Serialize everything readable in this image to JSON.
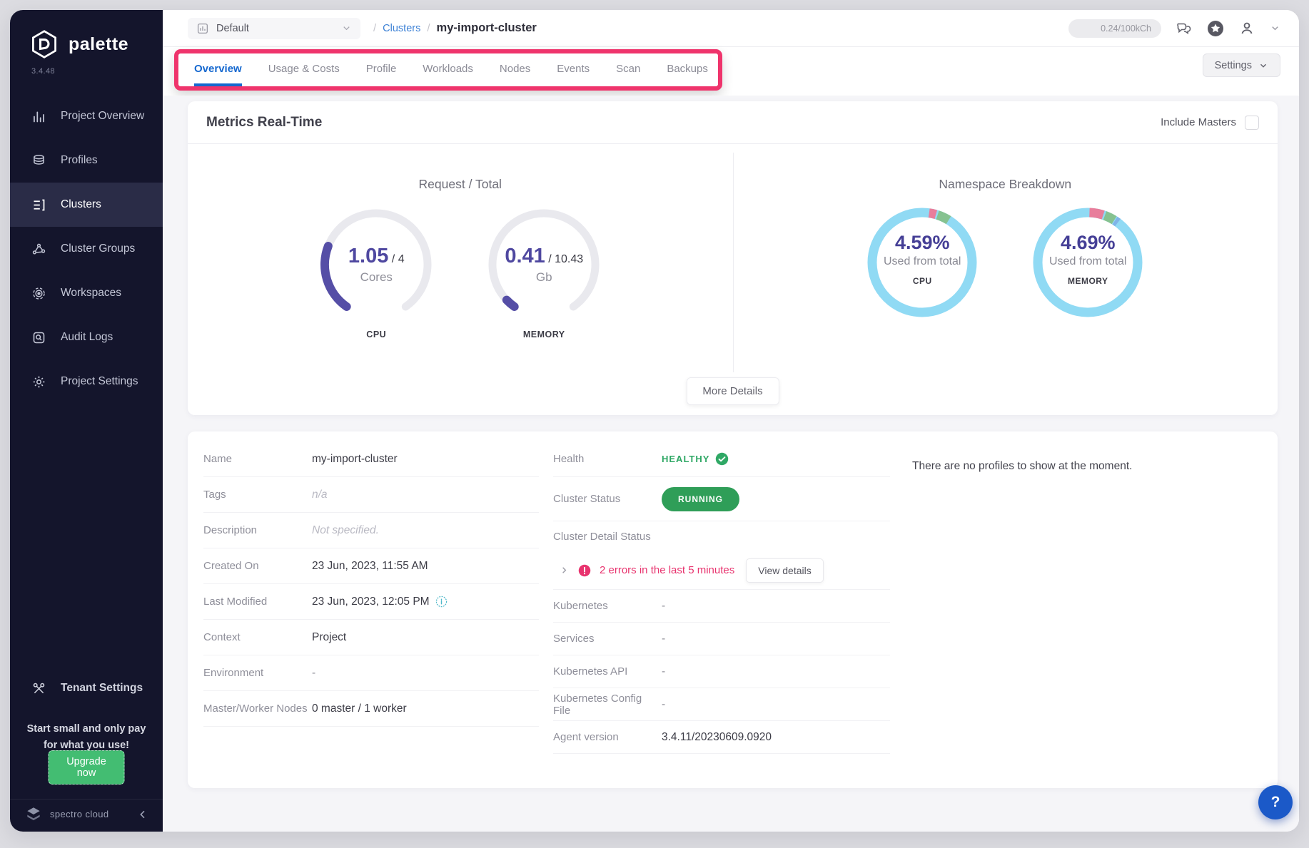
{
  "app": {
    "name": "palette",
    "version": "3.4.48"
  },
  "topbar": {
    "project_selector": "Default",
    "breadcrumb": {
      "sep": "/",
      "section": "Clusters",
      "current": "my-import-cluster"
    },
    "usage_badge": "0.24/100kCh"
  },
  "tabs": {
    "items": [
      {
        "label": "Overview",
        "active": true
      },
      {
        "label": "Usage & Costs",
        "active": false
      },
      {
        "label": "Profile",
        "active": false
      },
      {
        "label": "Workloads",
        "active": false
      },
      {
        "label": "Nodes",
        "active": false
      },
      {
        "label": "Events",
        "active": false
      },
      {
        "label": "Scan",
        "active": false
      },
      {
        "label": "Backups",
        "active": false
      }
    ],
    "settings_button": "Settings"
  },
  "sidebar": {
    "items": [
      {
        "label": "Project Overview",
        "icon": "bar-chart",
        "active": false
      },
      {
        "label": "Profiles",
        "icon": "layers",
        "active": false
      },
      {
        "label": "Clusters",
        "icon": "rows",
        "active": true
      },
      {
        "label": "Cluster Groups",
        "icon": "network",
        "active": false
      },
      {
        "label": "Workspaces",
        "icon": "target",
        "active": false
      },
      {
        "label": "Audit Logs",
        "icon": "audit",
        "active": false
      },
      {
        "label": "Project Settings",
        "icon": "gear",
        "active": false
      }
    ],
    "tenant_settings": "Tenant Settings",
    "promo_line1": "Start small and only pay",
    "promo_line2": "for what you use!",
    "upgrade_button": "Upgrade now",
    "brand": "spectro cloud"
  },
  "metrics_card": {
    "title": "Metrics Real-Time",
    "include_masters_label": "Include Masters",
    "more_details_button": "More Details"
  },
  "chart_data": [
    {
      "type": "gauge",
      "title": "Request / Total",
      "arc_start_deg": 125,
      "arc_span_deg": 290,
      "track_color": "#e9e9ee",
      "gauges": [
        {
          "label": "CPU",
          "value": 1.05,
          "total": 4,
          "value_text": "1.05",
          "total_text": "4",
          "unit": "Cores",
          "arc_color": "#554ea6"
        },
        {
          "label": "MEMORY",
          "value": 0.41,
          "total": 10.43,
          "value_text": "0.41",
          "total_text": "10.43",
          "unit": "Gb",
          "arc_color": "#554ea6"
        }
      ]
    },
    {
      "type": "donut",
      "title": "Namespace Breakdown",
      "ring_color": "#90daf4",
      "donuts": [
        {
          "label": "CPU",
          "percent": 4.59,
          "percent_text": "4.59%",
          "subtitle": "Used from total",
          "segments": [
            {
              "color": "#e87d9b",
              "start": -82,
              "sweep": 8
            },
            {
              "color": "#86c290",
              "start": -72,
              "sweep": 14
            }
          ]
        },
        {
          "label": "MEMORY",
          "percent": 4.69,
          "percent_text": "4.69%",
          "subtitle": "Used from total",
          "segments": [
            {
              "color": "#e87d9b",
              "start": -88,
              "sweep": 16
            },
            {
              "color": "#86c290",
              "start": -70,
              "sweep": 12
            },
            {
              "color": "#7fb4e8",
              "start": -57,
              "sweep": 4
            }
          ]
        }
      ]
    }
  ],
  "details_card": {
    "left_rows": [
      {
        "label": "Name",
        "value": "my-import-cluster"
      },
      {
        "label": "Tags",
        "value": "n/a",
        "muted": true
      },
      {
        "label": "Description",
        "value": "Not specified.",
        "muted": true
      },
      {
        "label": "Created On",
        "value": "23 Jun, 2023, 11:55 AM"
      },
      {
        "label": "Last Modified",
        "value": "23 Jun, 2023, 12:05 PM",
        "info": true
      },
      {
        "label": "Context",
        "value": "Project"
      },
      {
        "label": "Environment",
        "value": "-"
      },
      {
        "label": "Master/Worker Nodes",
        "value": "0 master / 1 worker"
      }
    ],
    "middle": {
      "health_label": "Health",
      "health_value": "HEALTHY",
      "status_label": "Cluster Status",
      "status_value": "RUNNING",
      "detail_status_label": "Cluster Detail Status",
      "error_text": "2 errors in the last 5 minutes",
      "view_details_button": "View details",
      "rows": [
        {
          "label": "Kubernetes",
          "value": "-"
        },
        {
          "label": "Services",
          "value": "-"
        },
        {
          "label": "Kubernetes API",
          "value": "-"
        },
        {
          "label": "Kubernetes Config File",
          "value": "-"
        },
        {
          "label": "Agent version",
          "value": "3.4.11/20230609.0920"
        }
      ]
    },
    "right_empty_text": "There are no profiles to show at the moment."
  },
  "help_button": "?"
}
